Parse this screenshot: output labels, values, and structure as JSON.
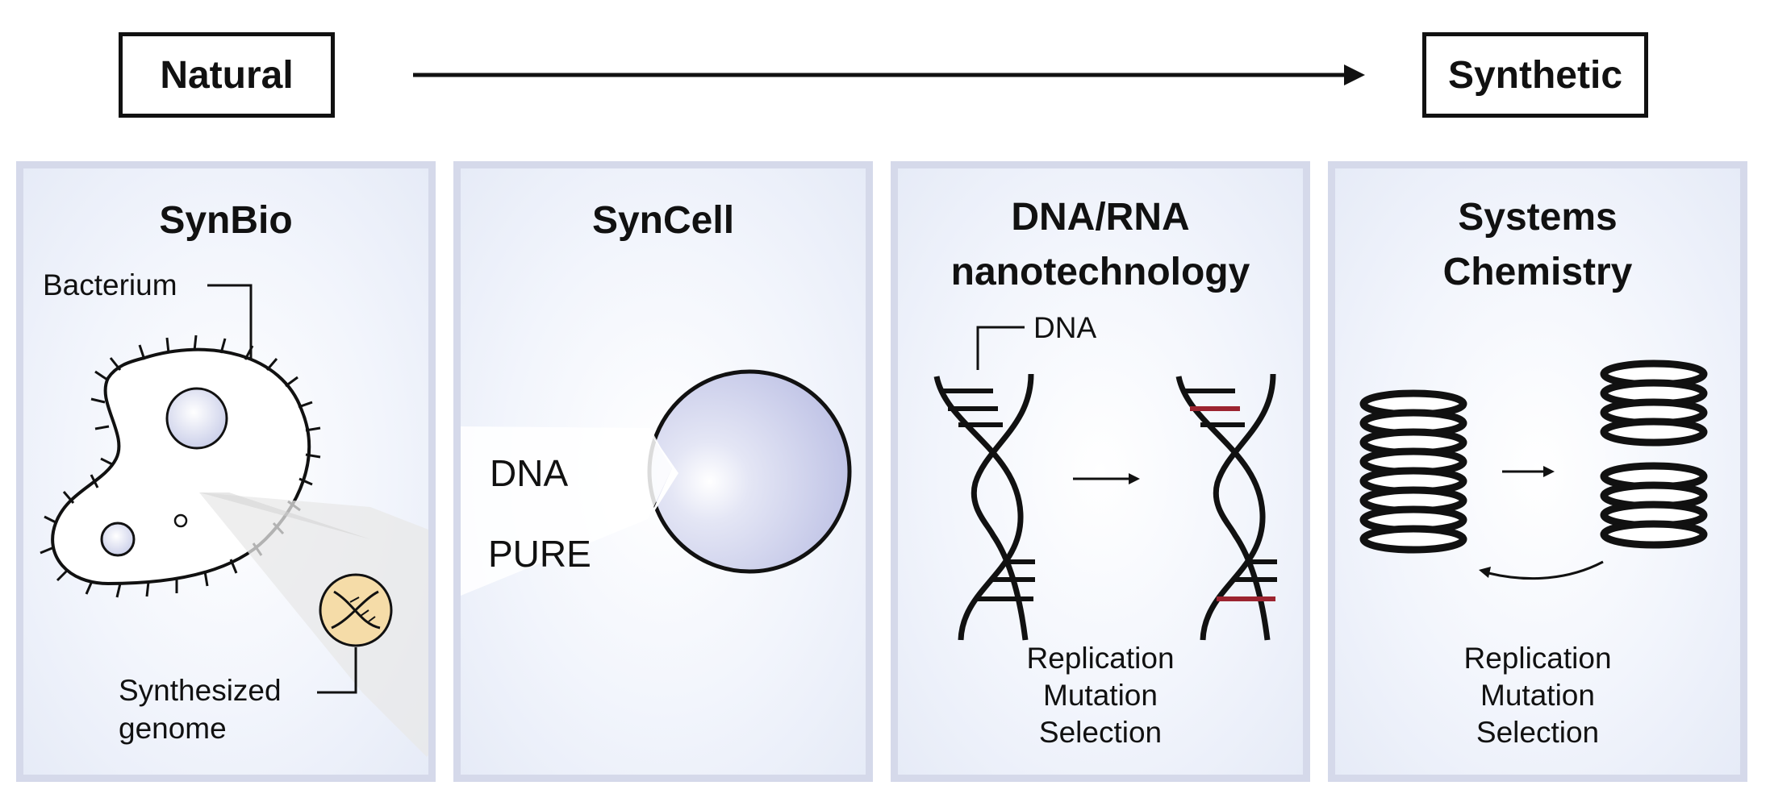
{
  "spectrum": {
    "left_label": "Natural",
    "right_label": "Synthetic"
  },
  "panels": [
    {
      "title": "SynBio",
      "labels": {
        "bacterium": "Bacterium",
        "genome_line1": "Synthesized",
        "genome_line2": "genome"
      }
    },
    {
      "title": "SynCell",
      "labels": {
        "dna": "DNA",
        "pure": "PURE"
      }
    },
    {
      "title_line1": "DNA/RNA",
      "title_line2": "nanotechnology",
      "labels": {
        "dna": "DNA",
        "process_1": "Replication",
        "process_2": "Mutation",
        "process_3": "Selection"
      }
    },
    {
      "title_line1": "Systems",
      "title_line2": "Chemistry",
      "labels": {
        "process_1": "Replication",
        "process_2": "Mutation",
        "process_3": "Selection"
      }
    }
  ],
  "colors": {
    "ink": "#111111",
    "panel_border": "#d5d9ea",
    "vesicle": "#c9cdea",
    "genome_badge": "#f5dca8",
    "mutation_red": "#9c2430"
  },
  "icons": [
    "bacterium-icon",
    "genome-icon",
    "vesicle-icon",
    "dna-helix-icon",
    "coil-stack-icon",
    "arrow-icon"
  ]
}
